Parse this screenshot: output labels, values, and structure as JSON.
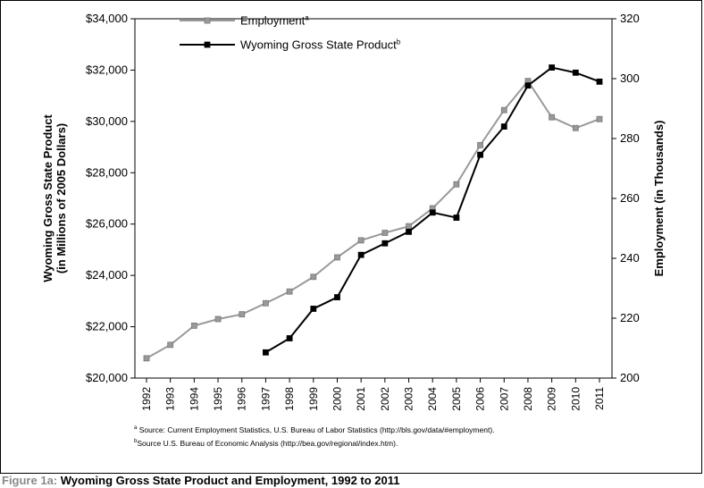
{
  "chart_data": {
    "type": "line",
    "x": [
      "1992",
      "1993",
      "1994",
      "1995",
      "1996",
      "1997",
      "1998",
      "1999",
      "2000",
      "2001",
      "2002",
      "2003",
      "2004",
      "2005",
      "2006",
      "2007",
      "2008",
      "2009",
      "2010",
      "2011"
    ],
    "series": [
      {
        "name": "Employment",
        "superscript": "a",
        "axis": "right",
        "color": "#999999",
        "values": [
          206.6,
          211.1,
          217.5,
          219.7,
          221.3,
          225.0,
          228.9,
          233.8,
          240.3,
          246.0,
          248.5,
          250.7,
          256.7,
          264.7,
          277.8,
          289.5,
          299.2,
          287.1,
          283.5,
          286.5
        ]
      },
      {
        "name": "Wyoming Gross State Product",
        "superscript": "b",
        "axis": "left",
        "color": "#000000",
        "values": [
          null,
          null,
          null,
          null,
          null,
          21000,
          21550,
          22700,
          23150,
          24800,
          25250,
          25700,
          26450,
          26250,
          28700,
          29800,
          31400,
          32100,
          31900,
          31550
        ]
      }
    ],
    "ylabel": "Wyoming Gross State Product\n(in Millions of 2005 Dollars)",
    "ylabel_lines": [
      "Wyoming Gross State Product",
      "(in Millions of 2005 Dollars)"
    ],
    "ylim": [
      20000,
      34000
    ],
    "yticks": [
      "$20,000",
      "$22,000",
      "$24,000",
      "$26,000",
      "$28,000",
      "$30,000",
      "$32,000",
      "$34,000"
    ],
    "y2label": "Employment (in Thousands)",
    "y2lim": [
      200,
      320
    ],
    "y2ticks": [
      "200",
      "220",
      "240",
      "260",
      "280",
      "300",
      "320"
    ],
    "legend_position": "top-left",
    "grid": false
  },
  "notes": [
    {
      "sup": "a",
      "text": "Source: Current Employment Statistics, U.S. Bureau of Labor Statistics (http://bls.gov/data/#employment)."
    },
    {
      "sup": "b",
      "text": "Source U.S. Bureau of Economic Analysis (http://bea.gov/regional/index.htm)."
    }
  ],
  "caption": {
    "prefix": "Figure 1a:",
    "text": "Wyoming Gross State Product and Employment, 1992 to 2011"
  }
}
